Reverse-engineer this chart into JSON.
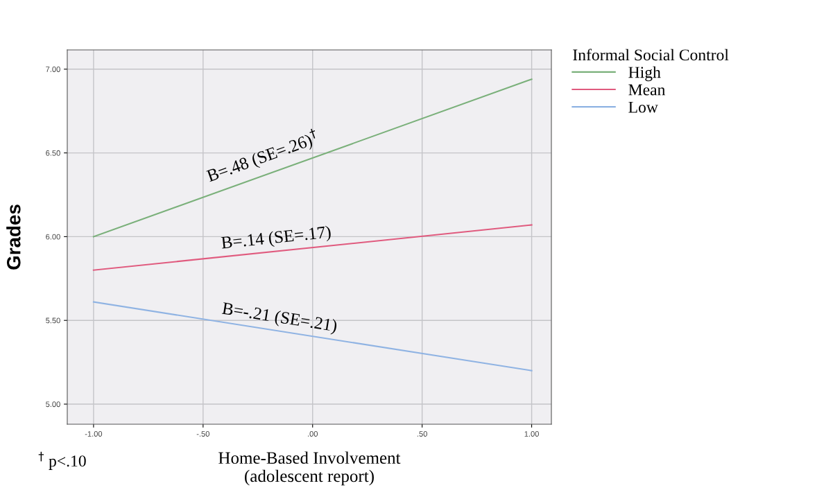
{
  "chart_data": {
    "type": "line",
    "xlabel": "Home-Based Involvement\n(adolescent report)",
    "ylabel": "Grades",
    "legend_title": "Informal Social Control",
    "x": [
      -1,
      1
    ],
    "series": [
      {
        "name": "High",
        "color": "#7ab07a",
        "values": [
          6.0,
          6.94
        ]
      },
      {
        "name": "Mean",
        "color": "#e05a7e",
        "values": [
          5.8,
          6.07
        ]
      },
      {
        "name": "Low",
        "color": "#8fb3e3",
        "values": [
          5.61,
          5.2
        ]
      }
    ],
    "annotations": [
      "B=.48 (SE=.26)$^{†}$",
      "B=.14 (SE=.17)",
      "B=-.21 (SE=.21)",
      "$^{†}$ p<.10"
    ],
    "xlim": [
      -1.12,
      1.09
    ],
    "ylim": [
      4.88,
      7.115
    ],
    "xticks": [
      {
        "value": -1,
        "label": "-1.00"
      },
      {
        "value": -0.5,
        "label": "-.50"
      },
      {
        "value": 0,
        "label": ".00"
      },
      {
        "value": 0.5,
        "label": ".50"
      },
      {
        "value": 1,
        "label": "1.00"
      }
    ],
    "yticks": [
      {
        "value": 5,
        "label": "5.00"
      },
      {
        "value": 5.5,
        "label": "5.50"
      },
      {
        "value": 6,
        "label": "6.00"
      },
      {
        "value": 6.5,
        "label": "6.50"
      },
      {
        "value": 7,
        "label": "7.00"
      }
    ],
    "grid": true,
    "legend": "right",
    "marker": "none",
    "line_style": "solid"
  }
}
